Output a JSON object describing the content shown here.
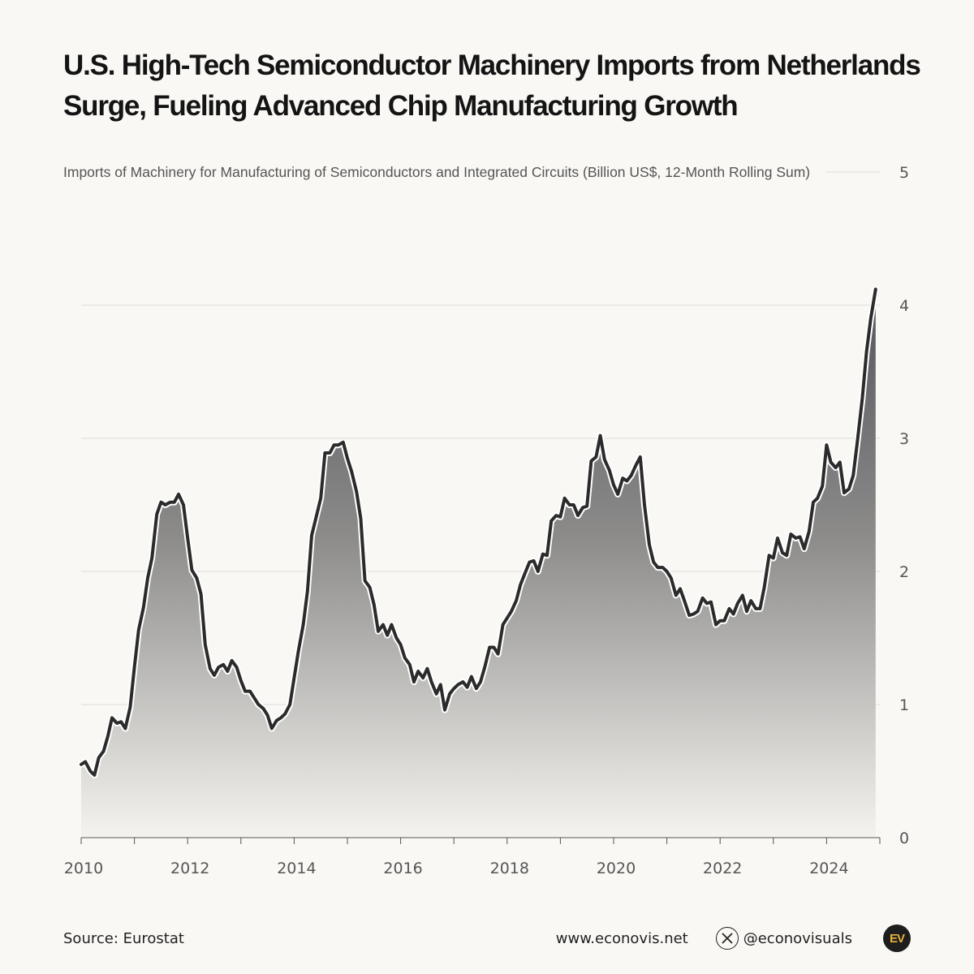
{
  "title": "U.S. High-Tech Semiconductor Machinery Imports from Netherlands Surge, Fueling Advanced Chip Manufacturing Growth",
  "footer": {
    "source": "Source: Eurostat",
    "website": "www.econovis.net",
    "handle": "@econovisuals",
    "logo_text": "EV",
    "x_icon": "x-logo-icon"
  },
  "colors": {
    "background": "#f9f8f4",
    "line": "#2b2b2b",
    "area_top": "#55555a",
    "area_bottom": "#f4f3ef",
    "grid": "#dddddd",
    "logo_accent": "#e8b23c"
  },
  "chart_data": {
    "type": "area",
    "title": "Imports of Machinery for Manufacturing of Semiconductors and Integrated Circuits (Billion US$, 12-Month Rolling Sum)",
    "xlabel": "",
    "ylabel": "",
    "xlim": [
      2010.0,
      2025.0
    ],
    "ylim": [
      0,
      5
    ],
    "x_ticks": [
      2010,
      2012,
      2014,
      2016,
      2018,
      2020,
      2022,
      2024
    ],
    "x_tick_labels": [
      "2010",
      "2012",
      "2014",
      "2016",
      "2018",
      "2020",
      "2022",
      "2024"
    ],
    "y_ticks": [
      0,
      1,
      2,
      3,
      4,
      5
    ],
    "y_tick_labels": [
      "0",
      "1",
      "2",
      "3",
      "4",
      "5"
    ],
    "y_axis_position": "right",
    "grid": true,
    "series": [
      {
        "name": "Imports (Billion US$, 12-month rolling sum)",
        "x": [
          2010.0,
          2010.08,
          2010.17,
          2010.25,
          2010.33,
          2010.42,
          2010.5,
          2010.58,
          2010.67,
          2010.75,
          2010.83,
          2010.92,
          2011.0,
          2011.08,
          2011.17,
          2011.25,
          2011.33,
          2011.42,
          2011.5,
          2011.58,
          2011.67,
          2011.75,
          2011.83,
          2011.92,
          2012.0,
          2012.08,
          2012.17,
          2012.25,
          2012.33,
          2012.42,
          2012.5,
          2012.58,
          2012.67,
          2012.75,
          2012.83,
          2012.92,
          2013.0,
          2013.08,
          2013.17,
          2013.25,
          2013.33,
          2013.42,
          2013.5,
          2013.58,
          2013.67,
          2013.75,
          2013.83,
          2013.92,
          2014.0,
          2014.08,
          2014.17,
          2014.25,
          2014.33,
          2014.42,
          2014.5,
          2014.58,
          2014.67,
          2014.75,
          2014.83,
          2014.92,
          2015.0,
          2015.08,
          2015.17,
          2015.25,
          2015.33,
          2015.42,
          2015.5,
          2015.58,
          2015.67,
          2015.75,
          2015.83,
          2015.92,
          2016.0,
          2016.08,
          2016.17,
          2016.25,
          2016.33,
          2016.42,
          2016.5,
          2016.58,
          2016.67,
          2016.75,
          2016.83,
          2016.92,
          2017.0,
          2017.08,
          2017.17,
          2017.25,
          2017.33,
          2017.42,
          2017.5,
          2017.58,
          2017.67,
          2017.75,
          2017.83,
          2017.92,
          2018.0,
          2018.08,
          2018.17,
          2018.25,
          2018.33,
          2018.42,
          2018.5,
          2018.58,
          2018.67,
          2018.75,
          2018.83,
          2018.92,
          2019.0,
          2019.08,
          2019.17,
          2019.25,
          2019.33,
          2019.42,
          2019.5,
          2019.58,
          2019.67,
          2019.75,
          2019.83,
          2019.92,
          2020.0,
          2020.08,
          2020.17,
          2020.25,
          2020.33,
          2020.42,
          2020.5,
          2020.58,
          2020.67,
          2020.75,
          2020.83,
          2020.92,
          2021.0,
          2021.08,
          2021.17,
          2021.25,
          2021.33,
          2021.42,
          2021.5,
          2021.58,
          2021.67,
          2021.75,
          2021.83,
          2021.92,
          2022.0,
          2022.08,
          2022.17,
          2022.25,
          2022.33,
          2022.42,
          2022.5,
          2022.58,
          2022.67,
          2022.75,
          2022.83,
          2022.92,
          2023.0,
          2023.08,
          2023.17,
          2023.25,
          2023.33,
          2023.42,
          2023.5,
          2023.58,
          2023.67,
          2023.75,
          2023.83,
          2023.92,
          2024.0,
          2024.08,
          2024.17,
          2024.25,
          2024.33,
          2024.42,
          2024.5,
          2024.58,
          2024.67,
          2024.75,
          2024.83,
          2024.92
        ],
        "values": [
          0.55,
          0.57,
          0.5,
          0.47,
          0.6,
          0.65,
          0.76,
          0.9,
          0.86,
          0.87,
          0.82,
          0.98,
          1.28,
          1.56,
          1.73,
          1.95,
          2.1,
          2.43,
          2.52,
          2.5,
          2.52,
          2.52,
          2.58,
          2.5,
          2.25,
          2.01,
          1.95,
          1.83,
          1.45,
          1.27,
          1.22,
          1.28,
          1.3,
          1.25,
          1.33,
          1.28,
          1.18,
          1.1,
          1.1,
          1.05,
          1.0,
          0.97,
          0.92,
          0.82,
          0.88,
          0.9,
          0.93,
          1.0,
          1.2,
          1.4,
          1.6,
          1.85,
          2.27,
          2.42,
          2.55,
          2.89,
          2.89,
          2.95,
          2.95,
          2.97,
          2.85,
          2.75,
          2.6,
          2.4,
          1.93,
          1.88,
          1.75,
          1.55,
          1.6,
          1.52,
          1.6,
          1.5,
          1.45,
          1.35,
          1.3,
          1.17,
          1.25,
          1.2,
          1.27,
          1.17,
          1.08,
          1.15,
          0.96,
          1.08,
          1.12,
          1.15,
          1.17,
          1.13,
          1.21,
          1.12,
          1.17,
          1.28,
          1.43,
          1.43,
          1.38,
          1.6,
          1.65,
          1.7,
          1.78,
          1.9,
          1.98,
          2.07,
          2.08,
          2.0,
          2.13,
          2.12,
          2.38,
          2.42,
          2.41,
          2.55,
          2.5,
          2.5,
          2.42,
          2.48,
          2.49,
          2.83,
          2.86,
          3.02,
          2.84,
          2.76,
          2.65,
          2.58,
          2.7,
          2.68,
          2.72,
          2.8,
          2.86,
          2.5,
          2.2,
          2.07,
          2.03,
          2.03,
          2.0,
          1.95,
          1.82,
          1.87,
          1.78,
          1.67,
          1.68,
          1.7,
          1.8,
          1.76,
          1.77,
          1.6,
          1.63,
          1.63,
          1.72,
          1.68,
          1.76,
          1.82,
          1.7,
          1.78,
          1.72,
          1.72,
          1.88,
          2.12,
          2.1,
          2.25,
          2.14,
          2.12,
          2.28,
          2.25,
          2.26,
          2.17,
          2.3,
          2.52,
          2.55,
          2.64,
          2.95,
          2.82,
          2.78,
          2.82,
          2.59,
          2.62,
          2.72,
          2.98,
          3.3,
          3.65,
          3.9,
          4.12
        ]
      }
    ]
  }
}
